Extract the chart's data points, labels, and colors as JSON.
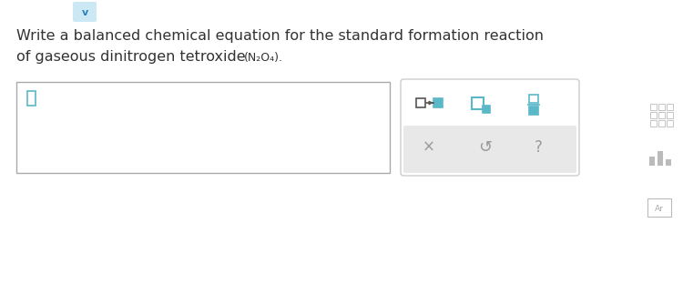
{
  "bg_color": "#ffffff",
  "title_line1": "Write a balanced chemical equation for the standard formation reaction",
  "title_line2": "of gaseous dinitrogen tetroxide (N₂O₄).",
  "title_fontsize": 11.5,
  "title_color": "#333333",
  "chevron_bg": "#cce8f4",
  "chevron_color": "#2980b9",
  "icon_teal": "#5bb8c9",
  "icon_gray": "#999999",
  "toolbar_edge": "#cccccc",
  "toolbar_gray_bg": "#e8e8e8",
  "input_edge": "#aaaaaa"
}
